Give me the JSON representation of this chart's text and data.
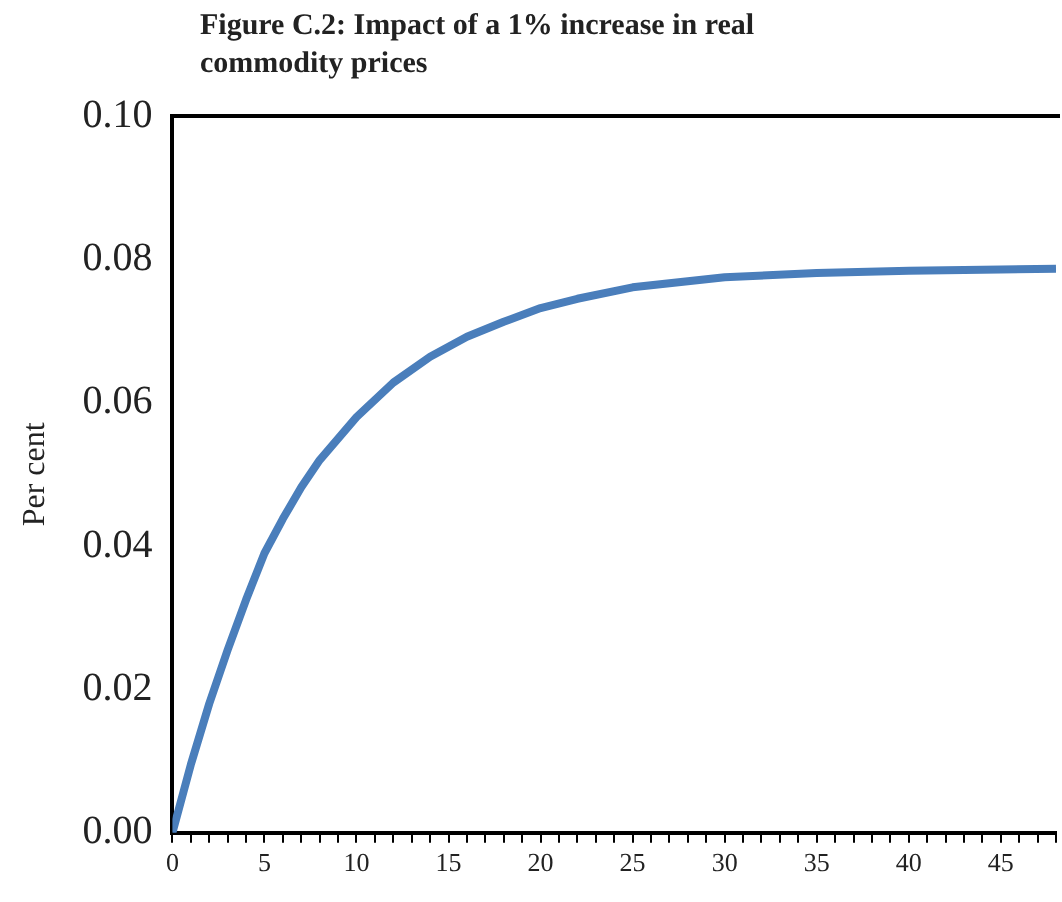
{
  "chart_data": {
    "type": "line",
    "title": "Figure C.2: Impact of a 1% increase in real commodity prices",
    "ylabel": "Per cent",
    "x": [
      0,
      1,
      2,
      3,
      4,
      5,
      6,
      7,
      8,
      10,
      12,
      14,
      16,
      18,
      20,
      22,
      25,
      30,
      35,
      40,
      45,
      48
    ],
    "series": [
      {
        "color": "#4a7ebb",
        "values": [
          0,
          0.0095,
          0.018,
          0.0255,
          0.0325,
          0.039,
          0.0438,
          0.0482,
          0.052,
          0.058,
          0.0628,
          0.0664,
          0.0692,
          0.0713,
          0.0732,
          0.0745,
          0.0761,
          0.0775,
          0.0781,
          0.0784,
          0.0786,
          0.0787
        ]
      }
    ],
    "xlim": [
      0,
      48
    ],
    "xticks": [
      0,
      {
        "value": 1,
        "label": null
      },
      {
        "value": 2,
        "label": null
      },
      {
        "value": 3,
        "label": null
      },
      {
        "value": 4,
        "label": null
      },
      5,
      {
        "value": 6,
        "label": null
      },
      {
        "value": 7,
        "label": null
      },
      {
        "value": 8,
        "label": null
      },
      {
        "value": 9,
        "label": null
      },
      10,
      {
        "value": 11,
        "label": null
      },
      {
        "value": 12,
        "label": null
      },
      {
        "value": 13,
        "label": null
      },
      {
        "value": 14,
        "label": null
      },
      15,
      {
        "value": 16,
        "label": null
      },
      {
        "value": 17,
        "label": null
      },
      {
        "value": 18,
        "label": null
      },
      {
        "value": 19,
        "label": null
      },
      20,
      {
        "value": 21,
        "label": null
      },
      {
        "value": 22,
        "label": null
      },
      {
        "value": 23,
        "label": null
      },
      {
        "value": 24,
        "label": null
      },
      25,
      {
        "value": 26,
        "label": null
      },
      {
        "value": 27,
        "label": null
      },
      {
        "value": 28,
        "label": null
      },
      {
        "value": 29,
        "label": null
      },
      30,
      {
        "value": 31,
        "label": null
      },
      {
        "value": 32,
        "label": null
      },
      {
        "value": 33,
        "label": null
      },
      {
        "value": 34,
        "label": null
      },
      35,
      {
        "value": 36,
        "label": null
      },
      {
        "value": 37,
        "label": null
      },
      {
        "value": 38,
        "label": null
      },
      {
        "value": 39,
        "label": null
      },
      40,
      {
        "value": 41,
        "label": null
      },
      {
        "value": 42,
        "label": null
      },
      {
        "value": 43,
        "label": null
      },
      {
        "value": 44,
        "label": null
      },
      45,
      {
        "value": 46,
        "label": null
      },
      {
        "value": 47,
        "label": null
      },
      {
        "value": 48,
        "label": null
      }
    ],
    "ylim": [
      0,
      0.1
    ],
    "yticks": [
      {
        "value": 0,
        "label": "0.00"
      },
      {
        "value": 0.02,
        "label": "0.02"
      },
      {
        "value": 0.04,
        "label": "0.04"
      },
      {
        "value": 0.06,
        "label": "0.06"
      },
      {
        "value": 0.08,
        "label": "0.08"
      },
      {
        "value": 0.1,
        "label": "0.10"
      }
    ],
    "grid": false,
    "legend": false,
    "marker": "none",
    "line_style": "solid"
  }
}
